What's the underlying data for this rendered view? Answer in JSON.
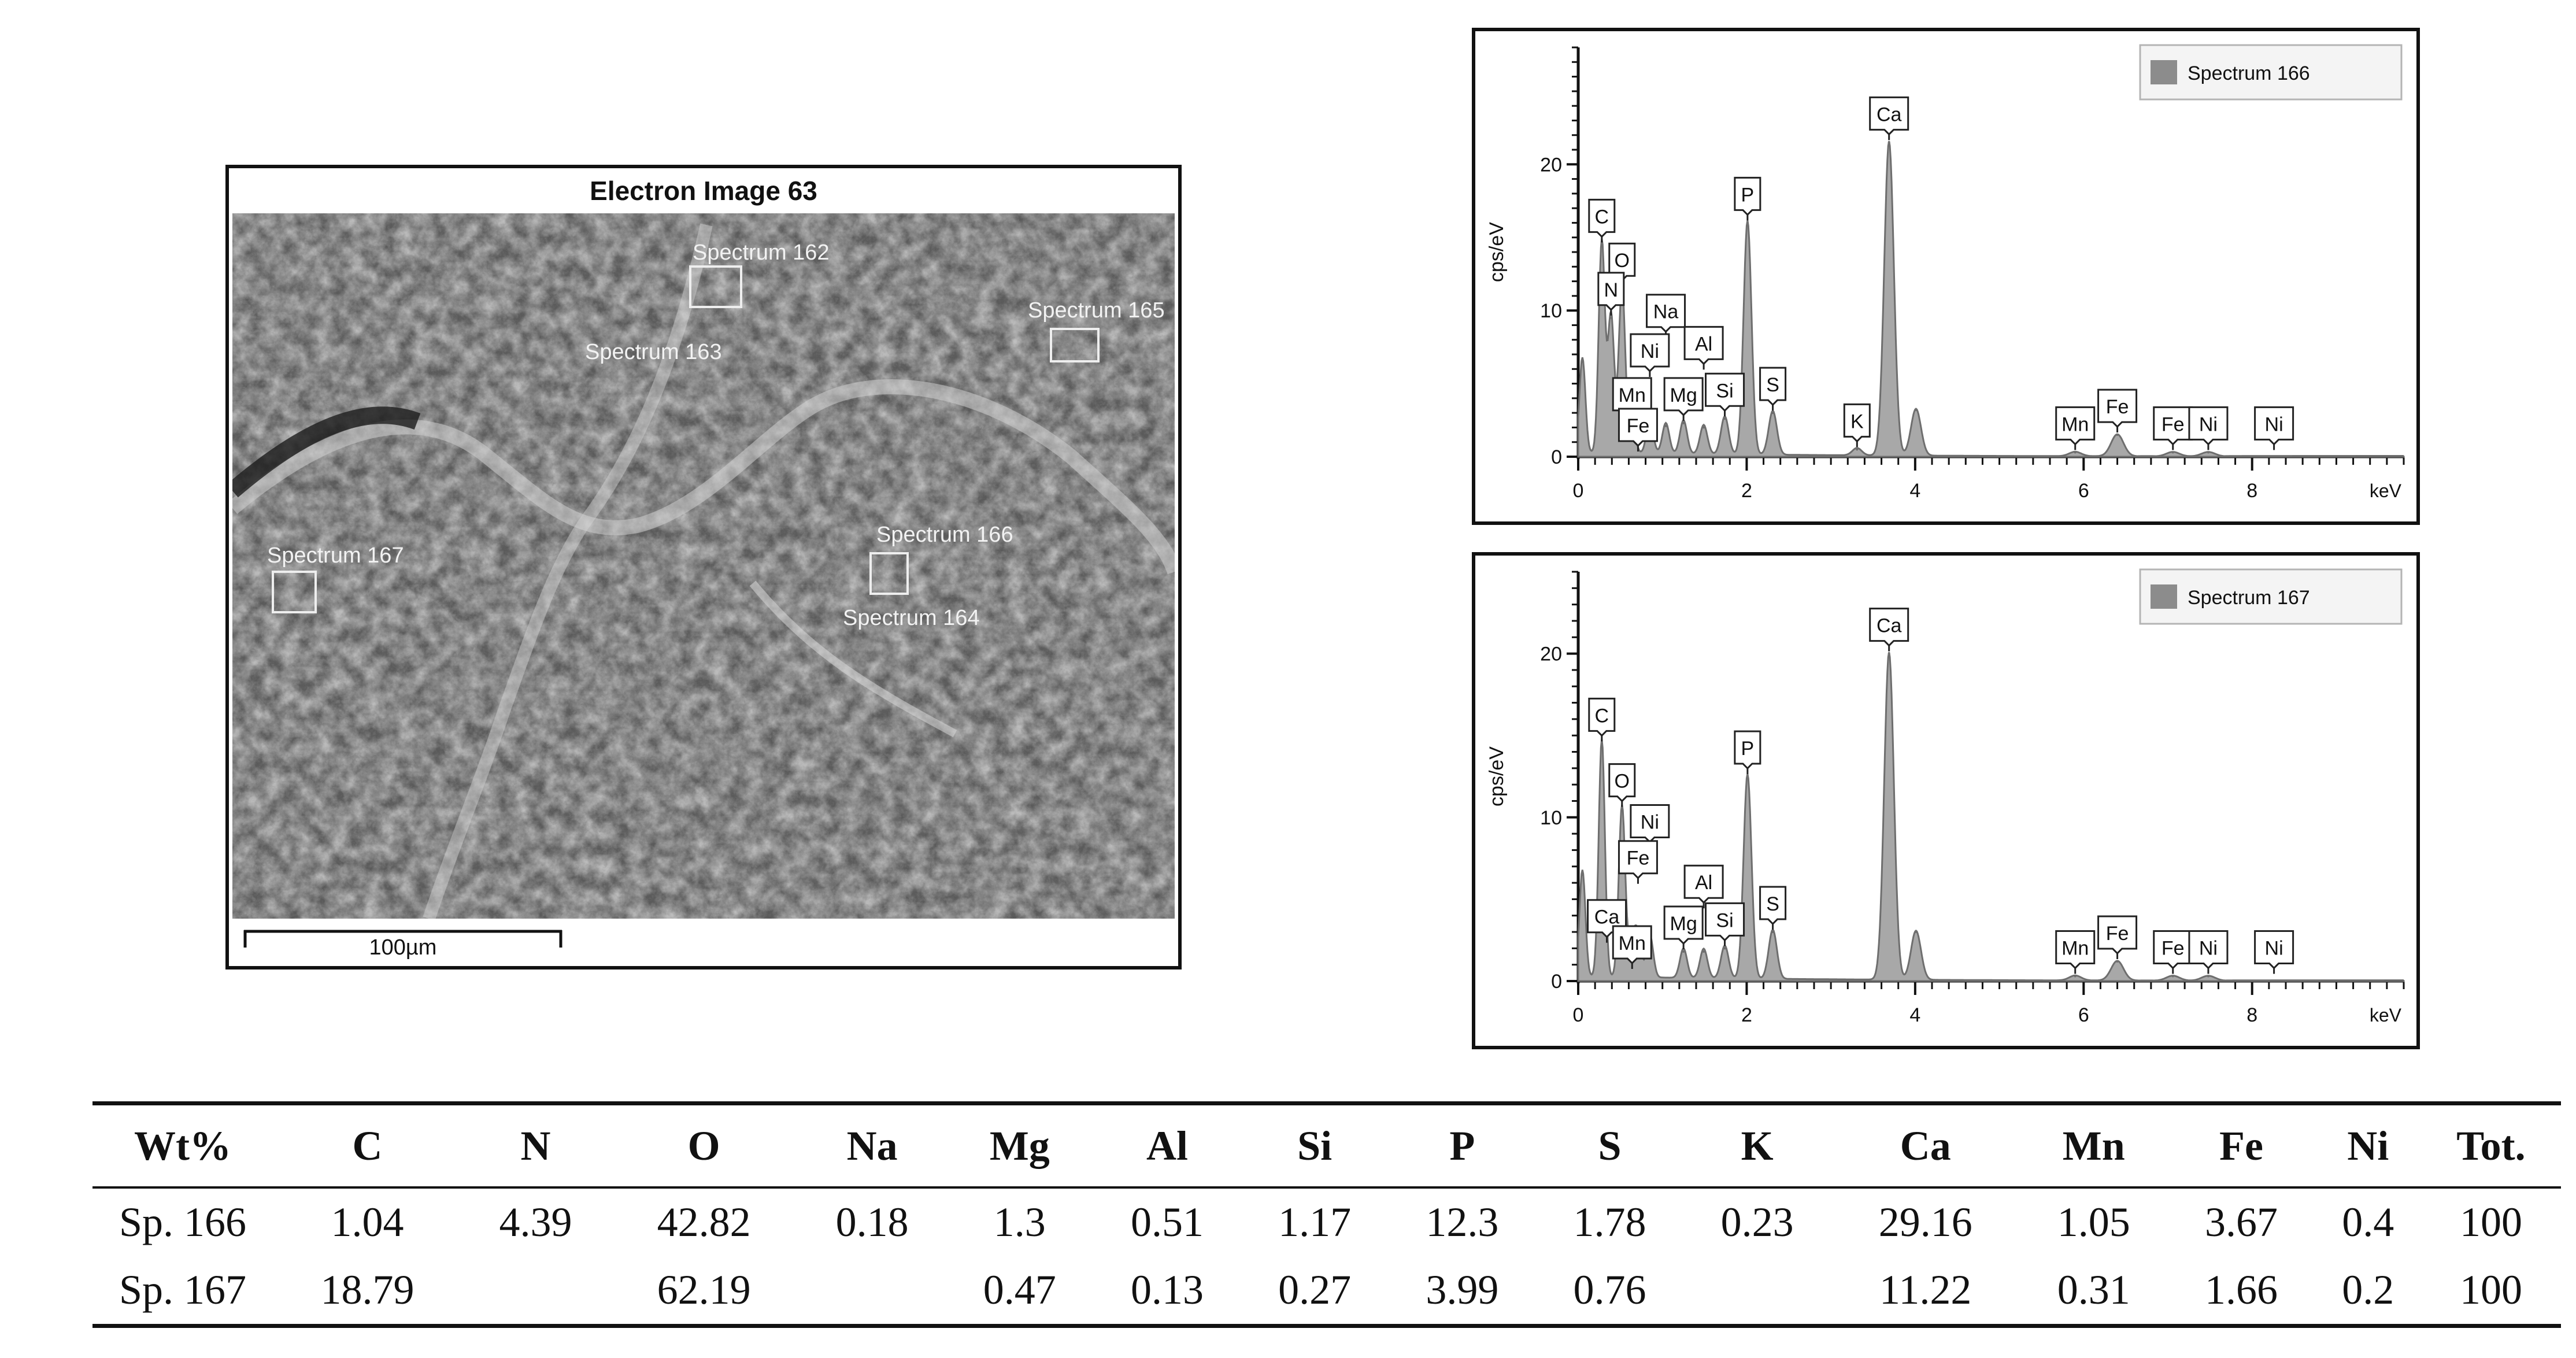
{
  "sem": {
    "title": "Electron Image 63",
    "scale_label": "100µm",
    "spectrum_labels": [
      "Spectrum 162",
      "Spectrum 163",
      "Spectrum 165",
      "Spectrum 167",
      "Spectrum 166",
      "Spectrum 164"
    ]
  },
  "chart_data": [
    {
      "type": "line",
      "legend": "Spectrum 166",
      "legend_position": "top-right",
      "ylabel": "cps/eV",
      "xlabel": "keV",
      "xlim": [
        0,
        9.8
      ],
      "ylim": [
        0,
        28
      ],
      "xticks": [
        0,
        2,
        4,
        6,
        8
      ],
      "yticks": [
        0,
        10,
        20
      ],
      "peaks": [
        {
          "x": 0.05,
          "y": 6.5
        },
        {
          "x": 0.28,
          "y": 14.5
        },
        {
          "x": 0.39,
          "y": 9.5
        },
        {
          "x": 0.52,
          "y": 11.5
        },
        {
          "x": 0.64,
          "y": 2.0
        },
        {
          "x": 0.85,
          "y": 2.3
        },
        {
          "x": 1.04,
          "y": 2.1
        },
        {
          "x": 1.25,
          "y": 2.3
        },
        {
          "x": 1.49,
          "y": 2.0
        },
        {
          "x": 1.74,
          "y": 2.6
        },
        {
          "x": 2.01,
          "y": 16.0
        },
        {
          "x": 2.31,
          "y": 3.0
        },
        {
          "x": 3.31,
          "y": 0.5
        },
        {
          "x": 3.69,
          "y": 21.5
        },
        {
          "x": 4.01,
          "y": 3.2
        },
        {
          "x": 5.9,
          "y": 0.3
        },
        {
          "x": 6.4,
          "y": 1.5
        },
        {
          "x": 7.06,
          "y": 0.3
        },
        {
          "x": 7.48,
          "y": 0.3
        }
      ],
      "labels": [
        {
          "text": "C",
          "x": 0.28,
          "y": 14.5
        },
        {
          "text": "O",
          "x": 0.52,
          "y": 11.5
        },
        {
          "text": "N",
          "x": 0.39,
          "y": 9.5
        },
        {
          "text": "Na",
          "x": 1.04,
          "y": 8.0
        },
        {
          "text": "Ni",
          "x": 0.85,
          "y": 5.3
        },
        {
          "text": "Al",
          "x": 1.49,
          "y": 5.8
        },
        {
          "text": "Mn",
          "x": 0.64,
          "y": 2.3
        },
        {
          "text": "Mg",
          "x": 1.25,
          "y": 2.3
        },
        {
          "text": "Si",
          "x": 1.74,
          "y": 2.6
        },
        {
          "text": "Fe",
          "x": 0.71,
          "y": 0.2
        },
        {
          "text": "P",
          "x": 2.01,
          "y": 16.0
        },
        {
          "text": "S",
          "x": 2.31,
          "y": 3.0
        },
        {
          "text": "K",
          "x": 3.31,
          "y": 0.5
        },
        {
          "text": "Ca",
          "x": 3.69,
          "y": 21.5
        },
        {
          "text": "Mn",
          "x": 5.9,
          "y": 0.3
        },
        {
          "text": "Fe",
          "x": 6.4,
          "y": 1.5
        },
        {
          "text": "Fe",
          "x": 7.06,
          "y": 0.3
        },
        {
          "text": "Ni",
          "x": 7.48,
          "y": 0.3
        },
        {
          "text": "Ni",
          "x": 8.26,
          "y": 0.3
        }
      ]
    },
    {
      "type": "line",
      "legend": "Spectrum 167",
      "legend_position": "top-right",
      "ylabel": "cps/eV",
      "xlabel": "keV",
      "xlim": [
        0,
        9.8
      ],
      "ylim": [
        0,
        25
      ],
      "xticks": [
        0,
        2,
        4,
        6,
        8
      ],
      "yticks": [
        0,
        10,
        20
      ],
      "peaks": [
        {
          "x": 0.05,
          "y": 6.5
        },
        {
          "x": 0.28,
          "y": 14.5
        },
        {
          "x": 0.52,
          "y": 10.5
        },
        {
          "x": 0.64,
          "y": 2.2
        },
        {
          "x": 0.71,
          "y": 2.5
        },
        {
          "x": 0.85,
          "y": 2.6
        },
        {
          "x": 1.25,
          "y": 1.8
        },
        {
          "x": 1.49,
          "y": 1.8
        },
        {
          "x": 1.74,
          "y": 2.0
        },
        {
          "x": 2.01,
          "y": 12.5
        },
        {
          "x": 2.31,
          "y": 3.0
        },
        {
          "x": 3.69,
          "y": 20.0
        },
        {
          "x": 4.01,
          "y": 3.0
        },
        {
          "x": 5.9,
          "y": 0.3
        },
        {
          "x": 6.4,
          "y": 1.2
        },
        {
          "x": 7.06,
          "y": 0.3
        },
        {
          "x": 7.48,
          "y": 0.3
        }
      ],
      "labels": [
        {
          "text": "C",
          "x": 0.28,
          "y": 14.5
        },
        {
          "text": "O",
          "x": 0.52,
          "y": 10.5
        },
        {
          "text": "Ni",
          "x": 0.85,
          "y": 8.0
        },
        {
          "text": "Fe",
          "x": 0.71,
          "y": 5.8
        },
        {
          "text": "Al",
          "x": 1.49,
          "y": 4.3
        },
        {
          "text": "Ca",
          "x": 0.34,
          "y": 2.2
        },
        {
          "text": "Mn",
          "x": 0.64,
          "y": 0.6
        },
        {
          "text": "Mg",
          "x": 1.25,
          "y": 1.8
        },
        {
          "text": "Si",
          "x": 1.74,
          "y": 2.0
        },
        {
          "text": "P",
          "x": 2.01,
          "y": 12.5
        },
        {
          "text": "S",
          "x": 2.31,
          "y": 3.0
        },
        {
          "text": "Ca",
          "x": 3.69,
          "y": 20.0
        },
        {
          "text": "Mn",
          "x": 5.9,
          "y": 0.3
        },
        {
          "text": "Fe",
          "x": 6.4,
          "y": 1.2
        },
        {
          "text": "Fe",
          "x": 7.06,
          "y": 0.3
        },
        {
          "text": "Ni",
          "x": 7.48,
          "y": 0.3
        },
        {
          "text": "Ni",
          "x": 8.26,
          "y": 0.3
        }
      ]
    },
    {
      "type": "table",
      "columns": [
        "Wt%",
        "C",
        "N",
        "O",
        "Na",
        "Mg",
        "Al",
        "Si",
        "P",
        "S",
        "K",
        "Ca",
        "Mn",
        "Fe",
        "Ni",
        "Tot."
      ],
      "rows": [
        [
          "Sp. 166",
          "1.04",
          "4.39",
          "42.82",
          "0.18",
          "1.3",
          "0.51",
          "1.17",
          "12.3",
          "1.78",
          "0.23",
          "29.16",
          "1.05",
          "3.67",
          "0.4",
          "100"
        ],
        [
          "Sp. 167",
          "18.79",
          "",
          "62.19",
          "",
          "0.47",
          "0.13",
          "0.27",
          "3.99",
          "0.76",
          "",
          "11.22",
          "0.31",
          "1.66",
          "0.2",
          "100"
        ]
      ]
    }
  ]
}
